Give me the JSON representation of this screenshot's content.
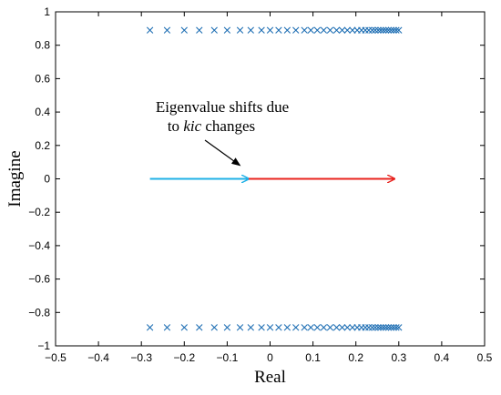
{
  "chart_data": {
    "type": "scatter",
    "title": "",
    "xlabel": "Real",
    "ylabel": "Imagine",
    "xlim": [
      -0.5,
      0.5
    ],
    "ylim": [
      -1,
      1
    ],
    "xticks": [
      -0.5,
      -0.4,
      -0.3,
      -0.2,
      -0.1,
      0,
      0.1,
      0.2,
      0.3,
      0.4,
      0.5
    ],
    "xtick_labels": [
      "−0.5",
      "−0.4",
      "−0.3",
      "−0.2",
      "−0.1",
      "0",
      "0.1",
      "0.2",
      "0.3",
      "0.4",
      "0.5"
    ],
    "yticks": [
      1,
      0.8,
      0.6,
      0.4,
      0.2,
      0,
      -0.2,
      -0.4,
      -0.6,
      -0.8,
      -1
    ],
    "ytick_labels": [
      "1",
      "0.8",
      "0.6",
      "0.4",
      "0.2",
      "0",
      "−0.2",
      "−0.4",
      "−0.6",
      "−0.8",
      "−1"
    ],
    "grid": false,
    "legend": "none",
    "marker": "x",
    "marker_color": "#1f6fb4",
    "series": [
      {
        "real": [
          -0.28,
          -0.24,
          -0.2,
          -0.165,
          -0.13,
          -0.1,
          -0.07,
          -0.045,
          -0.02,
          0.0,
          0.02,
          0.04,
          0.06,
          0.08,
          0.095,
          0.11,
          0.125,
          0.14,
          0.155,
          0.168,
          0.18,
          0.192,
          0.203,
          0.213,
          0.222,
          0.23,
          0.238,
          0.245,
          0.252,
          0.258,
          0.264,
          0.27,
          0.276,
          0.282,
          0.288,
          0.294,
          0.3
        ],
        "imag_upper": 0.89,
        "imag_lower": -0.89
      }
    ],
    "arrows": [
      {
        "from": [
          -0.28,
          0
        ],
        "to": [
          -0.05,
          0
        ],
        "color": "#1fb0e6"
      },
      {
        "from": [
          -0.05,
          0
        ],
        "to": [
          0.29,
          0
        ],
        "color": "#e8231e"
      }
    ],
    "annotation": {
      "line1": "Eigenvalue shifts due",
      "line2_prefix": "to ",
      "line2_italic": "kic",
      "line2_suffix": " changes",
      "pointer_to": [
        -0.07,
        0.08
      ]
    }
  }
}
